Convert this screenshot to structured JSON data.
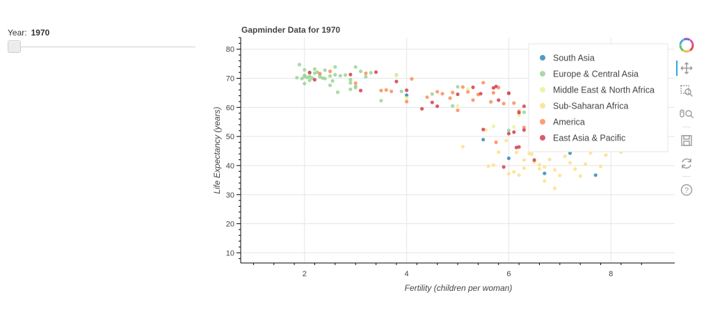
{
  "slider": {
    "label": "Year:",
    "value": "1970",
    "value_num": 1970,
    "min": 1970,
    "max": 2010
  },
  "toolbar": {
    "items": [
      {
        "name": "bokeh-logo-icon"
      },
      {
        "name": "pan-icon"
      },
      {
        "name": "box-zoom-icon"
      },
      {
        "name": "wheel-zoom-icon"
      },
      {
        "name": "save-icon"
      },
      {
        "name": "reset-icon"
      },
      {
        "name": "help-icon"
      }
    ]
  },
  "chart_data": {
    "type": "scatter",
    "title": "Gapminder Data for 1970",
    "xlabel": "Fertility (children per woman)",
    "ylabel": "Life Expectancy (years)",
    "xlim": [
      0.75,
      9.25
    ],
    "ylim": [
      6.5,
      84
    ],
    "x_ticks": [
      2,
      4,
      6,
      8
    ],
    "y_ticks": [
      10,
      20,
      30,
      40,
      50,
      60,
      70,
      80
    ],
    "grid": true,
    "legend_position": "top-right",
    "series": [
      {
        "name": "South Asia",
        "color": "#3288bd",
        "points": [
          [
            4.0,
            64.2
          ],
          [
            5.5,
            48.9
          ],
          [
            6.0,
            42.5
          ],
          [
            6.7,
            37.3
          ],
          [
            7.2,
            44.3
          ],
          [
            7.7,
            36.7
          ]
        ]
      },
      {
        "name": "Europe & Central Asia",
        "color": "#99d594",
        "points": [
          [
            1.9,
            74.7
          ],
          [
            2.0,
            72.9
          ],
          [
            2.0,
            71.0
          ],
          [
            2.1,
            70.6
          ],
          [
            2.1,
            69.3
          ],
          [
            2.0,
            68.2
          ],
          [
            2.2,
            71.8
          ],
          [
            2.2,
            73.2
          ],
          [
            2.3,
            71.4
          ],
          [
            2.3,
            70.5
          ],
          [
            2.4,
            69.9
          ],
          [
            2.4,
            72.8
          ],
          [
            2.5,
            70.8
          ],
          [
            2.6,
            73.9
          ],
          [
            2.6,
            71.2
          ],
          [
            2.5,
            67.6
          ],
          [
            2.7,
            70.9
          ],
          [
            2.8,
            71.1
          ],
          [
            2.9,
            69.5
          ],
          [
            2.9,
            68.4
          ],
          [
            3.0,
            73.9
          ],
          [
            3.1,
            72.4
          ],
          [
            2.9,
            66.2
          ],
          [
            3.0,
            67.2
          ],
          [
            3.2,
            70.5
          ],
          [
            3.3,
            71.9
          ],
          [
            3.8,
            71.1
          ],
          [
            3.5,
            62.3
          ],
          [
            3.9,
            65.5
          ],
          [
            4.5,
            64.6
          ],
          [
            5.0,
            67.1
          ],
          [
            6.0,
            52.1
          ],
          [
            6.3,
            58.3
          ],
          [
            1.95,
            69.9
          ],
          [
            2.05,
            70.3
          ],
          [
            2.15,
            70.1
          ],
          [
            2.25,
            72.1
          ],
          [
            2.35,
            70.1
          ],
          [
            2.55,
            69.1
          ],
          [
            2.65,
            65.2
          ],
          [
            2.0,
            70.6
          ],
          [
            1.85,
            70.2
          ],
          [
            2.1,
            71.9
          ],
          [
            3.0,
            66.8
          ],
          [
            4.9,
            60.5
          ]
        ]
      },
      {
        "name": "Middle East & North Africa",
        "color": "#e6f598",
        "points": [
          [
            3.8,
            70.9
          ],
          [
            4.0,
            63.2
          ],
          [
            5.0,
            60.5
          ],
          [
            5.2,
            66.2
          ],
          [
            6.2,
            57.3
          ],
          [
            6.5,
            53.2
          ],
          [
            5.7,
            53.5
          ],
          [
            6.6,
            55.1
          ],
          [
            6.1,
            53.3
          ],
          [
            6.9,
            51.2
          ]
        ]
      },
      {
        "name": "Sub-Saharan Africa",
        "color": "#fee08b",
        "points": [
          [
            5.1,
            46.5
          ],
          [
            5.6,
            39.8
          ],
          [
            5.8,
            44.6
          ],
          [
            6.0,
            37.2
          ],
          [
            6.1,
            37.8
          ],
          [
            6.2,
            36.7
          ],
          [
            6.3,
            39.1
          ],
          [
            6.4,
            44.1
          ],
          [
            6.5,
            41.2
          ],
          [
            6.6,
            38.9
          ],
          [
            6.7,
            34.7
          ],
          [
            6.8,
            42.1
          ],
          [
            6.9,
            32.2
          ],
          [
            6.9,
            38.5
          ],
          [
            7.0,
            36.6
          ],
          [
            7.1,
            43.2
          ],
          [
            7.2,
            41.0
          ],
          [
            7.3,
            38.8
          ],
          [
            7.4,
            36.4
          ],
          [
            7.5,
            40.5
          ],
          [
            7.6,
            44.3
          ],
          [
            7.8,
            39.7
          ],
          [
            7.9,
            43.6
          ],
          [
            8.2,
            44.6
          ],
          [
            6.3,
            41.9
          ],
          [
            6.6,
            40.3
          ],
          [
            6.7,
            39.5
          ],
          [
            7.05,
            45.4
          ],
          [
            5.95,
            48.6
          ],
          [
            6.15,
            44.5
          ],
          [
            6.45,
            43.9
          ],
          [
            6.75,
            45.9
          ],
          [
            7.35,
            46.1
          ],
          [
            7.7,
            45.5
          ],
          [
            5.55,
            52.2
          ],
          [
            5.7,
            40.2
          ]
        ]
      },
      {
        "name": "America",
        "color": "#fc8d59",
        "points": [
          [
            2.3,
            71.6
          ],
          [
            2.5,
            72.4
          ],
          [
            3.0,
            68.3
          ],
          [
            3.2,
            71.7
          ],
          [
            3.6,
            66.0
          ],
          [
            3.7,
            65.5
          ],
          [
            3.5,
            65.8
          ],
          [
            4.0,
            62.0
          ],
          [
            4.1,
            69.8
          ],
          [
            4.4,
            63.5
          ],
          [
            4.6,
            65.4
          ],
          [
            4.7,
            64.7
          ],
          [
            4.9,
            65.1
          ],
          [
            5.0,
            59.0
          ],
          [
            5.1,
            67.0
          ],
          [
            5.2,
            65.3
          ],
          [
            5.3,
            62.5
          ],
          [
            5.5,
            68.5
          ],
          [
            5.7,
            65.0
          ],
          [
            5.8,
            66.8
          ],
          [
            5.9,
            61.3
          ],
          [
            6.1,
            61.5
          ],
          [
            6.2,
            58.7
          ],
          [
            6.3,
            53.1
          ],
          [
            5.4,
            64.4
          ],
          [
            6.0,
            64.8
          ],
          [
            5.65,
            61.9
          ],
          [
            4.85,
            63.2
          ],
          [
            5.75,
            48.0
          ]
        ]
      },
      {
        "name": "East Asia & Pacific",
        "color": "#d53e4f",
        "points": [
          [
            2.1,
            72.0
          ],
          [
            2.2,
            69.5
          ],
          [
            2.9,
            71.3
          ],
          [
            3.1,
            65.8
          ],
          [
            3.4,
            72.1
          ],
          [
            3.8,
            68.9
          ],
          [
            4.0,
            65.9
          ],
          [
            4.3,
            59.5
          ],
          [
            4.5,
            61.7
          ],
          [
            4.6,
            60.4
          ],
          [
            5.0,
            64.5
          ],
          [
            5.3,
            66.9
          ],
          [
            5.5,
            52.4
          ],
          [
            5.7,
            66.7
          ],
          [
            5.8,
            62.5
          ],
          [
            6.0,
            64.9
          ],
          [
            6.0,
            51.0
          ],
          [
            6.1,
            51.5
          ],
          [
            6.2,
            58.2
          ],
          [
            6.3,
            60.4
          ],
          [
            5.9,
            39.5
          ],
          [
            6.2,
            46.4
          ],
          [
            6.3,
            52.2
          ],
          [
            6.5,
            41.9
          ],
          [
            5.45,
            64.7
          ],
          [
            5.75,
            67.2
          ],
          [
            6.15,
            46.2
          ]
        ]
      }
    ]
  }
}
